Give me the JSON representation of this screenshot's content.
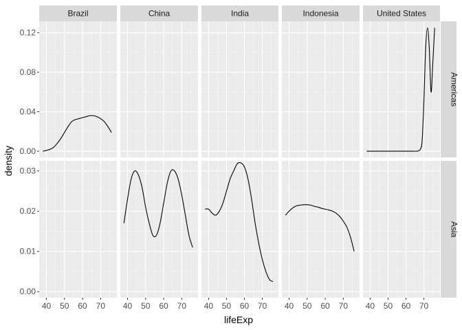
{
  "chart_data": {
    "type": "line",
    "xlabel": "lifeExp",
    "ylabel": "density",
    "x_range": [
      36,
      79
    ],
    "x_ticks": [
      40,
      50,
      60,
      70
    ],
    "columns": [
      "Brazil",
      "China",
      "India",
      "Indonesia",
      "United States"
    ],
    "rows": [
      {
        "label": "Americas",
        "y_range": [
          -0.0063,
          0.1316
        ],
        "y_ticks": [
          0.0,
          0.04,
          0.08,
          0.12
        ],
        "y_tick_labels": [
          "0.00",
          "0.04",
          "0.08",
          "0.12"
        ]
      },
      {
        "label": "Asia",
        "y_range": [
          -0.0015,
          0.0325
        ],
        "y_ticks": [
          0.0,
          0.01,
          0.02,
          0.03
        ],
        "y_tick_labels": [
          "0.00",
          "0.01",
          "0.02",
          "0.03"
        ]
      }
    ],
    "series": [
      {
        "name": "Brazil",
        "row": 0,
        "col": 0,
        "x": [
          38,
          40,
          42,
          44,
          46,
          48,
          50,
          52,
          54,
          56,
          58,
          60,
          62,
          64,
          66,
          68,
          70,
          72,
          74,
          76
        ],
        "y": [
          0.0,
          0.0008,
          0.002,
          0.004,
          0.008,
          0.013,
          0.019,
          0.025,
          0.03,
          0.032,
          0.033,
          0.034,
          0.035,
          0.036,
          0.036,
          0.035,
          0.033,
          0.03,
          0.025,
          0.019
        ]
      },
      {
        "name": "China",
        "row": 1,
        "col": 1,
        "x": [
          38,
          40,
          42,
          44,
          46,
          48,
          50,
          52,
          54,
          56,
          58,
          60,
          62,
          64,
          66,
          68,
          70,
          72,
          74,
          76
        ],
        "y": [
          0.017,
          0.023,
          0.028,
          0.03,
          0.029,
          0.026,
          0.021,
          0.017,
          0.014,
          0.014,
          0.017,
          0.022,
          0.027,
          0.03,
          0.03,
          0.028,
          0.024,
          0.019,
          0.014,
          0.011
        ]
      },
      {
        "name": "India",
        "row": 1,
        "col": 2,
        "x": [
          38,
          40,
          42,
          44,
          46,
          48,
          50,
          52,
          54,
          56,
          58,
          60,
          62,
          64,
          66,
          68,
          70,
          72,
          74,
          76
        ],
        "y": [
          0.0205,
          0.0205,
          0.0195,
          0.019,
          0.02,
          0.022,
          0.025,
          0.028,
          0.03,
          0.0318,
          0.032,
          0.031,
          0.028,
          0.023,
          0.017,
          0.012,
          0.008,
          0.005,
          0.003,
          0.0025
        ]
      },
      {
        "name": "Indonesia",
        "row": 1,
        "col": 3,
        "x": [
          38,
          40,
          42,
          44,
          46,
          48,
          50,
          52,
          54,
          56,
          58,
          60,
          62,
          64,
          66,
          68,
          70,
          72,
          74,
          76
        ],
        "y": [
          0.019,
          0.02,
          0.0208,
          0.0213,
          0.0215,
          0.0216,
          0.0216,
          0.0215,
          0.0212,
          0.021,
          0.0207,
          0.0205,
          0.0203,
          0.02,
          0.0195,
          0.0187,
          0.0175,
          0.016,
          0.0135,
          0.01
        ]
      },
      {
        "name": "United States",
        "row": 0,
        "col": 4,
        "x": [
          38,
          44,
          50,
          56,
          62,
          66,
          67,
          68,
          69,
          70,
          71,
          72,
          73,
          74,
          75,
          76
        ],
        "y": [
          0.0,
          0.0,
          0.0,
          0.0,
          0.0,
          0.0,
          0.0005,
          0.002,
          0.01,
          0.05,
          0.105,
          0.125,
          0.105,
          0.06,
          0.09,
          0.125
        ]
      }
    ],
    "panels": [
      {
        "row": 0,
        "col": 0,
        "show_y": true,
        "show_x": false
      },
      {
        "row": 0,
        "col": 1,
        "show_y": false,
        "show_x": false
      },
      {
        "row": 0,
        "col": 2,
        "show_y": false,
        "show_x": false
      },
      {
        "row": 0,
        "col": 3,
        "show_y": false,
        "show_x": false
      },
      {
        "row": 0,
        "col": 4,
        "show_y": false,
        "show_x": false
      },
      {
        "row": 1,
        "col": 0,
        "show_y": true,
        "show_x": true
      },
      {
        "row": 1,
        "col": 1,
        "show_y": false,
        "show_x": true
      },
      {
        "row": 1,
        "col": 2,
        "show_y": false,
        "show_x": true
      },
      {
        "row": 1,
        "col": 3,
        "show_y": false,
        "show_x": true
      },
      {
        "row": 1,
        "col": 4,
        "show_y": false,
        "show_x": true
      }
    ],
    "colors": {
      "panel_background": "#ebebeb",
      "grid_major": "#ffffff",
      "grid_minor": "#f5f5f5",
      "strip_background": "#d9d9d9",
      "line": "#000000"
    },
    "grid": true
  }
}
